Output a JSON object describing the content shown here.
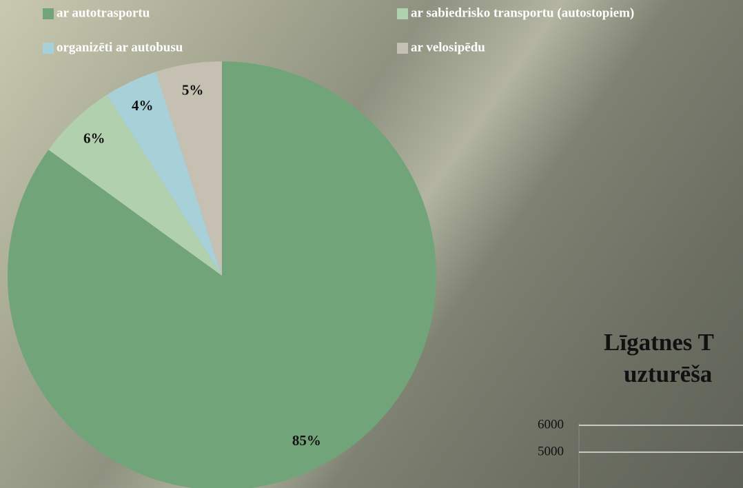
{
  "chart_data": [
    {
      "type": "pie",
      "categories": [
        "ar autotrasportu",
        "ar sabiedrisko transportu (autostopiem)",
        "organizēti ar autobusu",
        "ar velosipēdu"
      ],
      "values": [
        85,
        6,
        4,
        5
      ],
      "value_labels": [
        "85%",
        "6%",
        "4%",
        "5%"
      ],
      "colors": [
        "#72a47a",
        "#b0d0ae",
        "#a8d0d8",
        "#c6c0b2"
      ],
      "legend": "top"
    },
    {
      "type": "bar",
      "title": [
        "Līgatnes T",
        "uzturēša"
      ],
      "yticks": [
        5000,
        6000
      ],
      "grid": true
    }
  ]
}
